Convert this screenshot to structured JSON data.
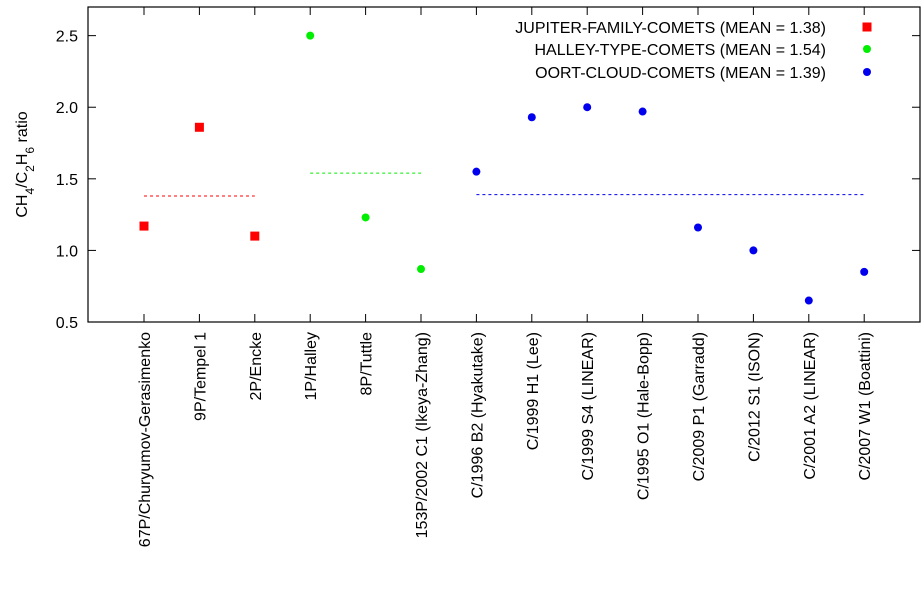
{
  "chart_data": {
    "type": "scatter",
    "title": "",
    "xlabel": "",
    "ylabel": {
      "parts": [
        {
          "t": "CH",
          "sub": false
        },
        {
          "t": "4",
          "sub": true
        },
        {
          "t": "/C",
          "sub": false
        },
        {
          "t": "2",
          "sub": true
        },
        {
          "t": "H",
          "sub": false
        },
        {
          "t": "6",
          "sub": true
        },
        {
          "t": " ratio",
          "sub": false
        }
      ]
    },
    "ylim": [
      0.5,
      2.7
    ],
    "yticks": [
      0.5,
      1.0,
      1.5,
      2.0,
      2.5
    ],
    "ytick_labels": [
      "0.5",
      "1.0",
      "1.5",
      "2.0",
      "2.5"
    ],
    "categories": [
      "67P/Churyumov-Gerasimenko",
      "9P/Tempel 1",
      "2P/Encke",
      "1P/Halley",
      "8P/Tuttle",
      "153P/2002 C1 (Ikeya-Zhang)",
      "C/1996 B2 (Hyakutake)",
      "C/1999 H1 (Lee)",
      "C/1999 S4 (LINEAR)",
      "C/1995 O1 (Hale-Bopp)",
      "C/2009 P1 (Garradd)",
      "C/2012 S1 (ISON)",
      "C/2001 A2 (LINEAR)",
      "C/2007 W1 (Boattini)"
    ],
    "legend_position": "top-right",
    "grid": false,
    "series": [
      {
        "name": "JUPITER-FAMILY-COMETS (MEAN = 1.38)",
        "marker": "square",
        "color": "#ff0000",
        "x": [
          1,
          2,
          3
        ],
        "values": [
          1.17,
          1.86,
          1.1
        ],
        "mean": 1.38,
        "mean_range": [
          1,
          3
        ]
      },
      {
        "name": "HALLEY-TYPE-COMETS (MEAN = 1.54)",
        "marker": "circle",
        "color": "#00ee00",
        "x": [
          4,
          5,
          6
        ],
        "values": [
          2.5,
          1.23,
          0.87
        ],
        "mean": 1.54,
        "mean_range": [
          4,
          6
        ]
      },
      {
        "name": "OORT-CLOUD-COMETS (MEAN = 1.39)",
        "marker": "circle",
        "color": "#0000ee",
        "x": [
          7,
          8,
          9,
          10,
          11,
          12,
          13,
          14
        ],
        "values": [
          1.55,
          1.93,
          2.0,
          1.97,
          1.16,
          1.0,
          0.65,
          0.85
        ],
        "mean": 1.39,
        "mean_range": [
          7,
          14
        ]
      }
    ]
  }
}
